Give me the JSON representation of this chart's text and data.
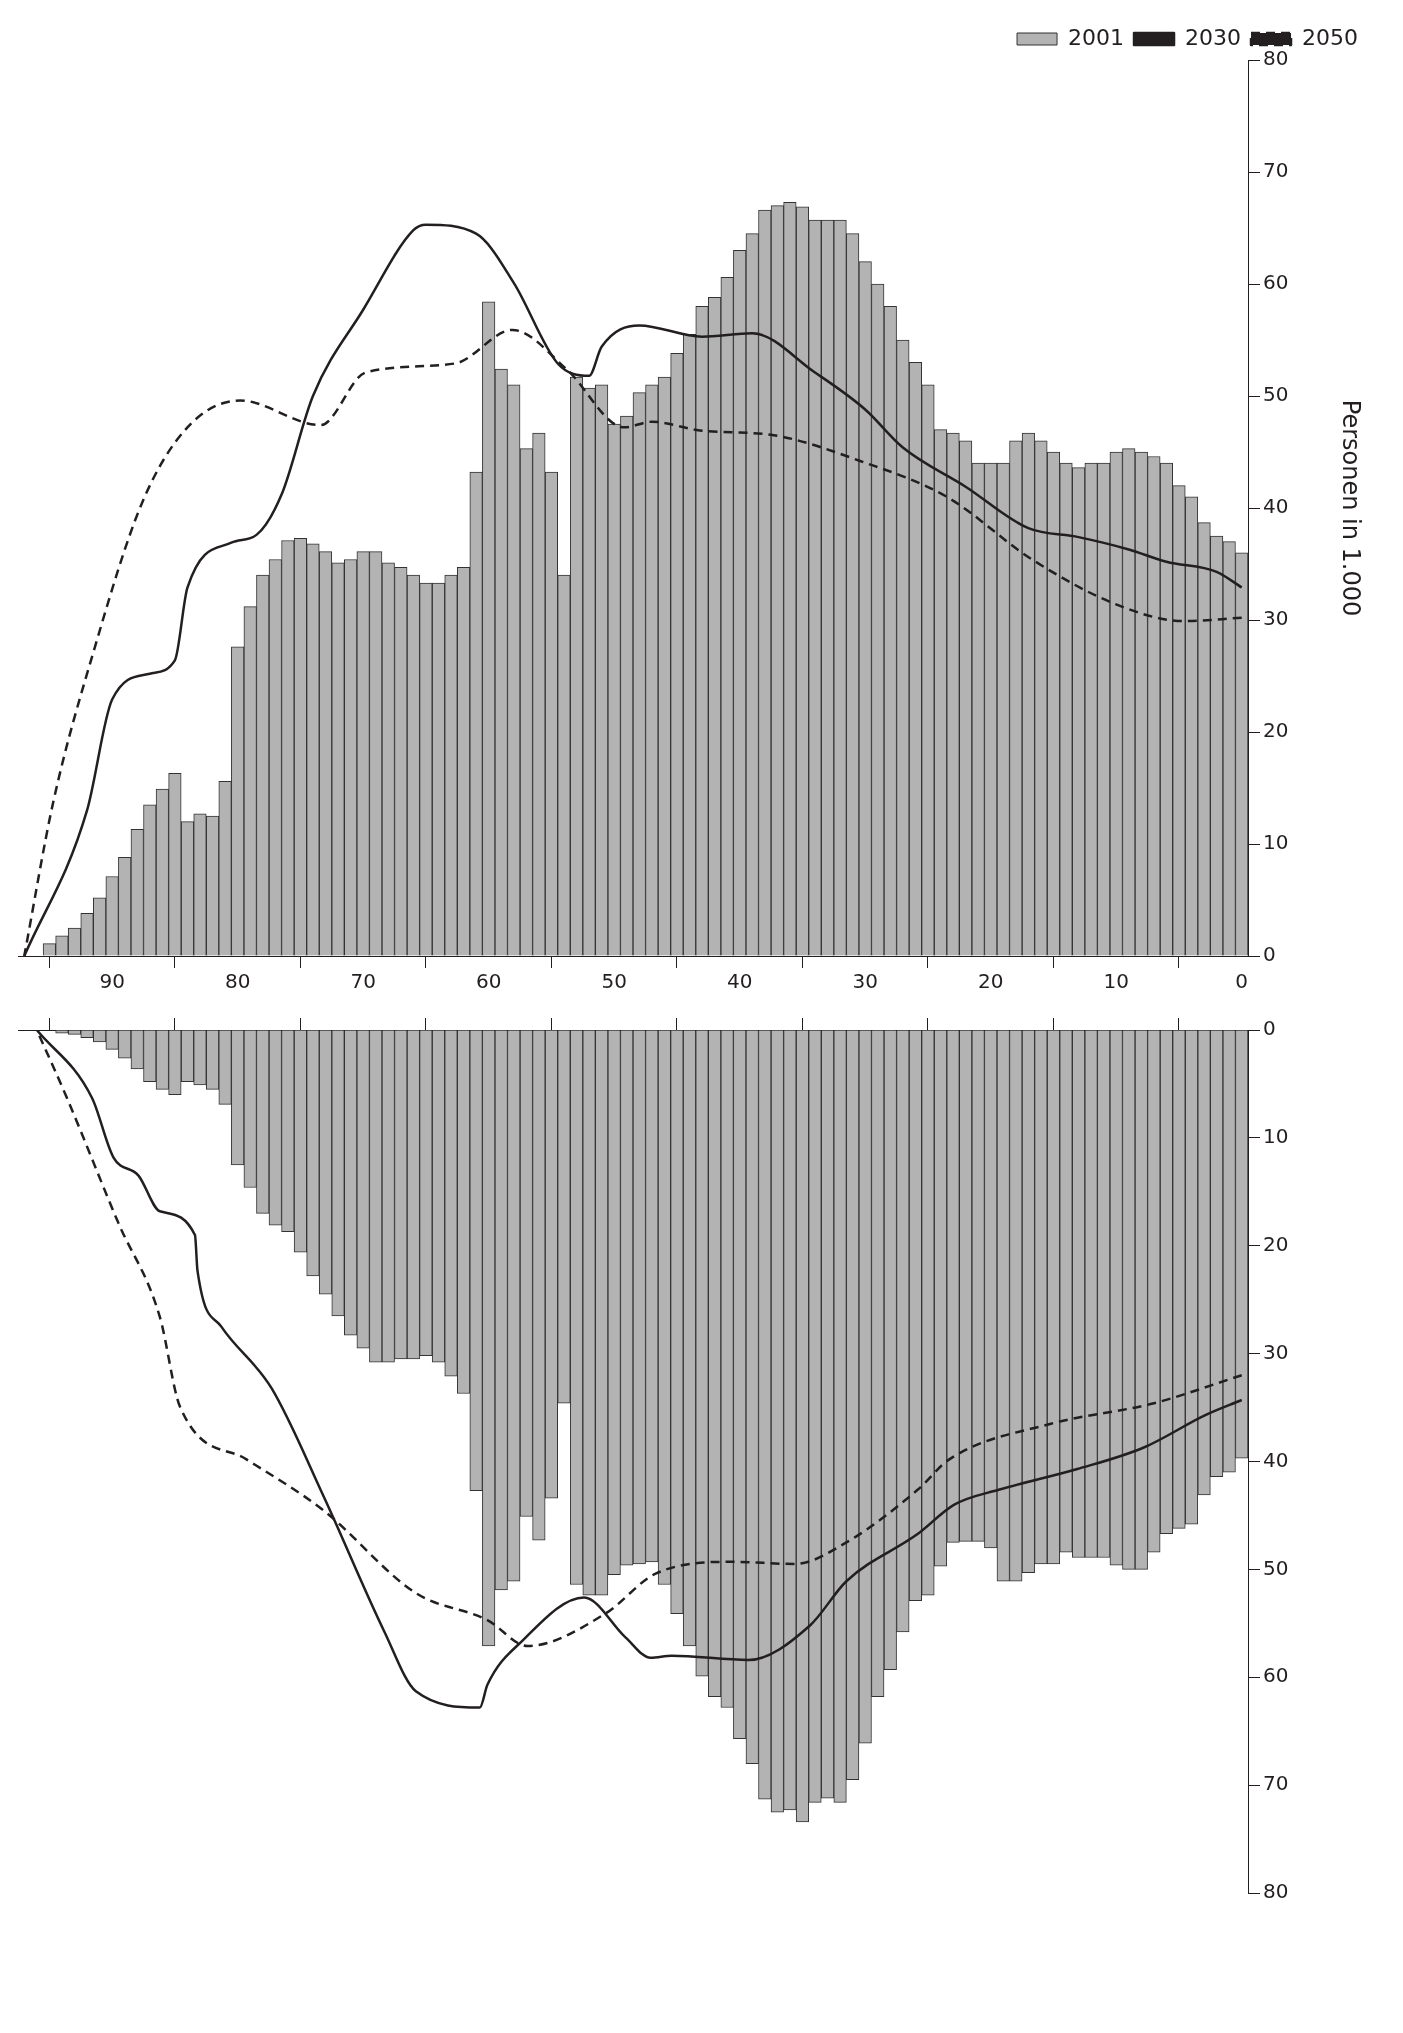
{
  "chart_data": [
    {
      "type": "bar",
      "ylabel": "Personen in 1.000",
      "legend": "top right",
      "marker": "none",
      "grid": false,
      "x": [
        0,
        1,
        2,
        3,
        4,
        5,
        6,
        7,
        8,
        9,
        10,
        11,
        12,
        13,
        14,
        15,
        16,
        17,
        18,
        19,
        20,
        21,
        22,
        23,
        24,
        25,
        26,
        27,
        28,
        29,
        30,
        31,
        32,
        33,
        34,
        35,
        36,
        37,
        38,
        39,
        40,
        41,
        42,
        43,
        44,
        45,
        46,
        47,
        48,
        49,
        50,
        51,
        52,
        53,
        54,
        55,
        56,
        57,
        58,
        59,
        60,
        61,
        62,
        63,
        64,
        65,
        66,
        67,
        68,
        69,
        70,
        71,
        72,
        73,
        74,
        75,
        76,
        77,
        78,
        79,
        80,
        81,
        82,
        83,
        84,
        85,
        86,
        87,
        88,
        89,
        90,
        91,
        92,
        93,
        94,
        95
      ],
      "xlim": [
        97.5,
        -0.5
      ],
      "xticks": [
        0,
        10,
        20,
        30,
        40,
        50,
        60,
        70,
        80,
        90
      ],
      "ylim": [
        0,
        80
      ],
      "yticks": [
        0,
        10,
        20,
        30,
        40,
        50,
        60,
        70,
        80
      ],
      "series": [
        {
          "name": "2001",
          "color": "#b3b3b3",
          "values": [
            36,
            37,
            37.5,
            38.7,
            41,
            42,
            44,
            44.6,
            45,
            45.3,
            45,
            44,
            44,
            43.6,
            44,
            45,
            46,
            46.7,
            46,
            44,
            44,
            44,
            46,
            46.7,
            47,
            51,
            53,
            55,
            58,
            60,
            62,
            64.5,
            65.7,
            65.7,
            65.7,
            66.9,
            67.3,
            67,
            66.6,
            64.5,
            63,
            60.6,
            58.8,
            58,
            55.5,
            53.8,
            51.7,
            51,
            50.3,
            48.2,
            47.5,
            51,
            50.7,
            51.7,
            34,
            43.2,
            46.7,
            45.3,
            51,
            52.4,
            58.4,
            43.2,
            34.7,
            34,
            33.3,
            33.3,
            34,
            34.7,
            35.1,
            36.1,
            36.1,
            35.4,
            35.1,
            36.1,
            36.8,
            37.3,
            37.1,
            35.4,
            34,
            31.2,
            27.6,
            15.6,
            12.5,
            12.7,
            12,
            16.3,
            14.9,
            13.5,
            11.3,
            8.8,
            7.1,
            5.2,
            3.8,
            2.5,
            1.8,
            1.1
          ]
        },
        {
          "name": "2030",
          "type": "line",
          "color": "#231f20",
          "line_style": "solid",
          "x": [
            0,
            2,
            6,
            9,
            13,
            17,
            22,
            27,
            30,
            34,
            39,
            43,
            48,
            51,
            52,
            54.5,
            58,
            61,
            65,
            66,
            70,
            74,
            76.5,
            78.5,
            80.5,
            84,
            85,
            87,
            90,
            92,
            97
          ],
          "values": [
            32.9,
            34.3,
            35.2,
            36.3,
            37.4,
            38.2,
            41.9,
            45.4,
            48.8,
            52.1,
            55.6,
            55.3,
            56.3,
            54.4,
            51.8,
            52.9,
            60.1,
            64.5,
            65.3,
            64.8,
            57.7,
            50,
            41.2,
            37.6,
            36.9,
            32.9,
            26.4,
            25.2,
            22.9,
            13,
            0
          ]
        },
        {
          "name": "2050",
          "type": "line",
          "color": "#231f20",
          "line_style": "dashed",
          "x": [
            0,
            4.6,
            9.8,
            16.7,
            23.5,
            30.4,
            37.3,
            43,
            47,
            49.2,
            53.8,
            58.1,
            62.7,
            69.8,
            73.4,
            79.8,
            84,
            87.6,
            91.5,
            94.7,
            97
          ],
          "values": [
            30.2,
            29.9,
            31.3,
            35.4,
            41,
            44.2,
            46.5,
            46.9,
            47.7,
            47.2,
            52.4,
            55.9,
            52.9,
            52.1,
            47.4,
            49.6,
            47.2,
            40.5,
            27.1,
            13.7,
            0
          ]
        }
      ]
    },
    {
      "type": "bar",
      "marker": "none",
      "grid": false,
      "tick_labels": "y",
      "x": [
        0,
        1,
        2,
        3,
        4,
        5,
        6,
        7,
        8,
        9,
        10,
        11,
        12,
        13,
        14,
        15,
        16,
        17,
        18,
        19,
        20,
        21,
        22,
        23,
        24,
        25,
        26,
        27,
        28,
        29,
        30,
        31,
        32,
        33,
        34,
        35,
        36,
        37,
        38,
        39,
        40,
        41,
        42,
        43,
        44,
        45,
        46,
        47,
        48,
        49,
        50,
        51,
        52,
        53,
        54,
        55,
        56,
        57,
        58,
        59,
        60,
        61,
        62,
        63,
        64,
        65,
        66,
        67,
        68,
        69,
        70,
        71,
        72,
        73,
        74,
        75,
        76,
        77,
        78,
        79,
        80,
        81,
        82,
        83,
        84,
        85,
        86,
        87,
        88,
        89,
        90,
        91,
        92,
        93,
        94
      ],
      "xlim": [
        97.5,
        -0.5
      ],
      "xticks": [
        0,
        10,
        20,
        30,
        40,
        50,
        60,
        70,
        80,
        90
      ],
      "ylim": [
        80,
        0
      ],
      "yticks": [
        0,
        10,
        20,
        30,
        40,
        50,
        60,
        70,
        80
      ],
      "series": [
        {
          "color": "#b3b3b3",
          "values": [
            39.7,
            41,
            41.4,
            43.1,
            45.8,
            46.2,
            46.7,
            48.4,
            50,
            50,
            49.6,
            48.9,
            48.9,
            48.9,
            48.4,
            49.5,
            49.5,
            50.3,
            51.1,
            51.1,
            48,
            47.4,
            47.4,
            47.5,
            49.7,
            52.4,
            52.9,
            55.8,
            59.3,
            61.8,
            66.1,
            69.5,
            71.6,
            71.2,
            71.6,
            73.4,
            72.3,
            72.5,
            71.3,
            68,
            65.7,
            62.8,
            61.8,
            59.9,
            57.1,
            54.1,
            51.4,
            49.3,
            49.5,
            49.6,
            50.5,
            52.4,
            52.4,
            51.4,
            34.6,
            43.4,
            47.3,
            45.1,
            51.1,
            51.9,
            57.1,
            42.7,
            33.7,
            32.1,
            30.8,
            30.2,
            30.5,
            30.5,
            30.8,
            30.8,
            29.5,
            28.3,
            26.5,
            24.5,
            22.8,
            20.6,
            18.7,
            18.1,
            17,
            14.6,
            12.5,
            6.9,
            5.5,
            5.1,
            4.8,
            6,
            5.5,
            4.8,
            3.6,
            2.6,
            1.8,
            1.1,
            0.7,
            0.4,
            0.3
          ]
        },
        {
          "type": "line",
          "color": "#231f20",
          "line_style": "solid",
          "x": [
            0,
            2.9,
            7.8,
            13.1,
            19.3,
            22.9,
            25.8,
            31.5,
            34.4,
            39.3,
            45.4,
            47.1,
            49.1,
            52.4,
            57.3,
            60.1,
            60.7,
            65.8,
            68.3,
            73.2,
            77.3,
            81.3,
            83.2,
            83.4,
            86.2,
            87.9,
            89.9,
            91.6,
            96
          ],
          "values": [
            34.3,
            35.7,
            38.7,
            40.7,
            42.6,
            44,
            46.7,
            51.1,
            55.2,
            58.4,
            58,
            58.2,
            56.3,
            52.6,
            56.6,
            60.7,
            62.8,
            61.3,
            55.8,
            43.1,
            33.2,
            27.5,
            22.3,
            19,
            16.8,
            13.5,
            11.8,
            6.3,
            0
          ]
        },
        {
          "type": "line",
          "color": "#231f20",
          "line_style": "dashed",
          "x": [
            0,
            7,
            15.2,
            23.3,
            25.8,
            31.5,
            35.6,
            40.5,
            46.7,
            50.7,
            56.9,
            60.1,
            65.8,
            73.2,
            79.3,
            84.6,
            86.2,
            89.5,
            93.6,
            96
          ],
          "values": [
            32,
            34.6,
            36.5,
            39.8,
            42.6,
            47.5,
            49.5,
            49.3,
            50.4,
            54.1,
            57.1,
            54.7,
            52.2,
            44.5,
            39.8,
            34.9,
            26.6,
            17.9,
            6.3,
            0
          ]
        }
      ]
    }
  ]
}
